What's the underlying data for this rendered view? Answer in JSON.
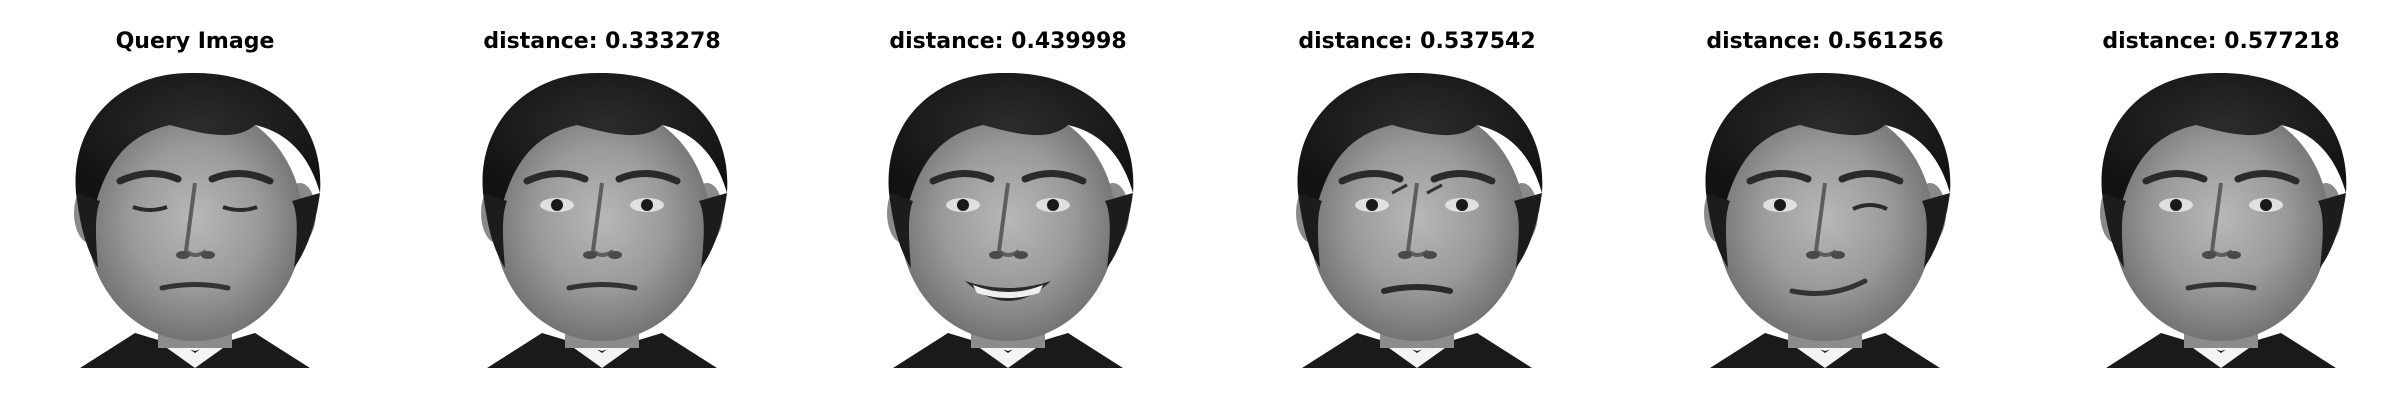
{
  "figure": {
    "panels": [
      {
        "title": "Query Image",
        "image": "face-query-eyes-closed"
      },
      {
        "title": "distance: 0.333278",
        "image": "face-neutral"
      },
      {
        "title": "distance: 0.439998",
        "image": "face-smiling"
      },
      {
        "title": "distance: 0.537542",
        "image": "face-frowning"
      },
      {
        "title": "distance: 0.561256",
        "image": "face-winking"
      },
      {
        "title": "distance: 0.577218",
        "image": "face-neutral"
      }
    ]
  }
}
